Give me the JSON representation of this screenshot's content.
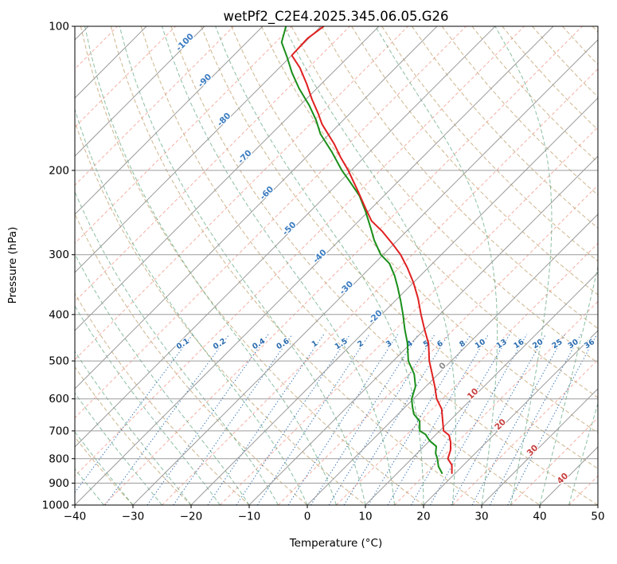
{
  "title": "wetPf2_C2E4.2025.345.06.05.G26",
  "chart_data": {
    "type": "line",
    "subtype": "skewT-logP-sounding",
    "title": "wetPf2_C2E4.2025.345.06.05.G26",
    "xlabel": "Temperature (°C)",
    "ylabel": "Pressure (hPa)",
    "xlim": [
      -40,
      50
    ],
    "plim": [
      100,
      1000
    ],
    "skew": 45,
    "grid_color": "#9c9c9c",
    "x_ticks": [
      {
        "v": -40,
        "label": "−40"
      },
      {
        "v": -30,
        "label": "−30"
      },
      {
        "v": -20,
        "label": "−20"
      },
      {
        "v": -10,
        "label": "−10"
      },
      {
        "v": 0,
        "label": "0"
      },
      {
        "v": 10,
        "label": "10"
      },
      {
        "v": 20,
        "label": "20"
      },
      {
        "v": 30,
        "label": "30"
      },
      {
        "v": 40,
        "label": "40"
      },
      {
        "v": 50,
        "label": "50"
      }
    ],
    "y_ticks": [
      {
        "v": 100,
        "label": "100"
      },
      {
        "v": 200,
        "label": "200"
      },
      {
        "v": 300,
        "label": "300"
      },
      {
        "v": 400,
        "label": "400"
      },
      {
        "v": 500,
        "label": "500"
      },
      {
        "v": 600,
        "label": "600"
      },
      {
        "v": 700,
        "label": "700"
      },
      {
        "v": 800,
        "label": "800"
      },
      {
        "v": 900,
        "label": "900"
      },
      {
        "v": 1000,
        "label": "1000"
      }
    ],
    "isotherms": {
      "start": -120,
      "end": 50,
      "step": 10,
      "color": "#9c9c9c"
    },
    "isotherms_minor": {
      "start": -115,
      "end": 45,
      "step": 10,
      "color": "rgba(236,122,104,0.6)"
    },
    "dry_adiabats": {
      "theta_start_c": -40,
      "theta_end_c": 190,
      "step": 10,
      "color": "rgba(188,158,104,0.75)"
    },
    "moist_adiabats": {
      "t_start_c": -40,
      "t_end_c": 45,
      "step": 5,
      "color": "rgba(44,138,86,0.55)"
    },
    "mixing_ratio": {
      "color": "rgba(42,108,175,0.9)",
      "label_color": "#2a6caf",
      "label_pressure": 465,
      "top_pressure": 440,
      "values": [
        {
          "label": "0.1"
        },
        {
          "label": "0.2"
        },
        {
          "label": "0.4"
        },
        {
          "label": "0.6"
        },
        {
          "label": "1"
        },
        {
          "label": "1.5"
        },
        {
          "label": "2"
        },
        {
          "label": "3"
        },
        {
          "label": "4"
        },
        {
          "label": "5"
        },
        {
          "label": "6"
        },
        {
          "label": "8"
        },
        {
          "label": "10"
        },
        {
          "label": "13"
        },
        {
          "label": "16"
        },
        {
          "label": "20"
        },
        {
          "label": "25"
        },
        {
          "label": "30"
        },
        {
          "label": "36"
        }
      ]
    },
    "isotherm_labels": [
      {
        "label": "-100",
        "t": -100,
        "p": 109,
        "color": "#3b7cc0"
      },
      {
        "label": "-90",
        "t": -90,
        "p": 131,
        "color": "#3b7cc0"
      },
      {
        "label": "-80",
        "t": -80,
        "p": 158,
        "color": "#3b7cc0"
      },
      {
        "label": "-70",
        "t": -70,
        "p": 189,
        "color": "#3b7cc0"
      },
      {
        "label": "-60",
        "t": -60,
        "p": 225,
        "color": "#3b7cc0"
      },
      {
        "label": "-50",
        "t": -50,
        "p": 267,
        "color": "#3b7cc0"
      },
      {
        "label": "-40",
        "t": -40,
        "p": 305,
        "color": "#3b7cc0"
      },
      {
        "label": "-30",
        "t": -30,
        "p": 355,
        "color": "#3b7cc0"
      },
      {
        "label": "-20",
        "t": -20,
        "p": 408,
        "color": "#3b7cc0"
      },
      {
        "label": "0",
        "t": 0,
        "p": 517,
        "color": "#8a8a8a"
      },
      {
        "label": "10",
        "t": 10,
        "p": 591,
        "color": "#c84040"
      },
      {
        "label": "20",
        "t": 20,
        "p": 685,
        "color": "#c84040"
      },
      {
        "label": "30",
        "t": 30,
        "p": 776,
        "color": "#c84040"
      },
      {
        "label": "40",
        "t": 40,
        "p": 888,
        "color": "#c84040"
      }
    ],
    "series": [
      {
        "name": "dewpoint",
        "color": "#1a8f1a",
        "points": [
          [
            100,
            -86.0
          ],
          [
            108,
            -84.0
          ],
          [
            116,
            -80.5
          ],
          [
            125,
            -77.0
          ],
          [
            135,
            -73.0
          ],
          [
            146,
            -68.5
          ],
          [
            157,
            -64.7
          ],
          [
            168,
            -61.5
          ],
          [
            183,
            -56.5
          ],
          [
            200,
            -51.6
          ],
          [
            210,
            -48.6
          ],
          [
            226,
            -44.2
          ],
          [
            244,
            -40.4
          ],
          [
            264,
            -36.7
          ],
          [
            280,
            -34.0
          ],
          [
            300,
            -30.4
          ],
          [
            313,
            -27.4
          ],
          [
            332,
            -24.4
          ],
          [
            350,
            -22.0
          ],
          [
            375,
            -19.0
          ],
          [
            400,
            -16.3
          ],
          [
            430,
            -13.4
          ],
          [
            458,
            -10.7
          ],
          [
            500,
            -7.4
          ],
          [
            533,
            -4.1
          ],
          [
            565,
            -1.8
          ],
          [
            600,
            -0.3
          ],
          [
            622,
            1.1
          ],
          [
            646,
            2.7
          ],
          [
            668,
            4.9
          ],
          [
            700,
            6.6
          ],
          [
            712,
            8.2
          ],
          [
            734,
            10.0
          ],
          [
            754,
            12.1
          ],
          [
            780,
            13.2
          ],
          [
            800,
            14.4
          ],
          [
            830,
            15.9
          ],
          [
            858,
            17.7
          ]
        ]
      },
      {
        "name": "temperature",
        "color": "#e02020",
        "points": [
          [
            100,
            -79.5
          ],
          [
            106,
            -80.2
          ],
          [
            115,
            -80.0
          ],
          [
            122,
            -76.5
          ],
          [
            132,
            -72.5
          ],
          [
            142,
            -69.0
          ],
          [
            152,
            -65.5
          ],
          [
            160,
            -63.0
          ],
          [
            176,
            -57.5
          ],
          [
            188,
            -54.0
          ],
          [
            200,
            -50.5
          ],
          [
            220,
            -45.5
          ],
          [
            240,
            -41.0
          ],
          [
            255,
            -37.8
          ],
          [
            268,
            -34.2
          ],
          [
            285,
            -30.2
          ],
          [
            300,
            -27.0
          ],
          [
            320,
            -23.5
          ],
          [
            343,
            -20.0
          ],
          [
            370,
            -16.5
          ],
          [
            400,
            -13.2
          ],
          [
            430,
            -10.0
          ],
          [
            460,
            -6.9
          ],
          [
            500,
            -3.8
          ],
          [
            533,
            -1.0
          ],
          [
            566,
            1.6
          ],
          [
            600,
            4.0
          ],
          [
            630,
            6.6
          ],
          [
            660,
            8.4
          ],
          [
            700,
            10.7
          ],
          [
            715,
            12.4
          ],
          [
            740,
            13.9
          ],
          [
            768,
            15.2
          ],
          [
            800,
            16.2
          ],
          [
            825,
            18.0
          ],
          [
            858,
            19.4
          ]
        ]
      }
    ]
  }
}
